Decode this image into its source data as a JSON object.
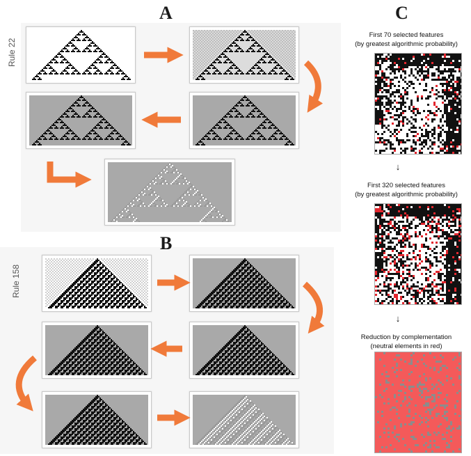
{
  "sections": {
    "A": {
      "letter": "A",
      "rule_label": "Rule 22"
    },
    "B": {
      "letter": "B",
      "rule_label": "Rule 158"
    },
    "C": {
      "letter": "C",
      "steps": [
        {
          "caption_line1": "First 70 selected features",
          "caption_line2": "(by greatest algorithmic probability)"
        },
        {
          "caption_line1": "First 320 selected features",
          "caption_line2": "(by greatest algorithmic probability)"
        },
        {
          "caption_line1": "Reduction by complementation",
          "caption_line2": "(neutral elements in red)"
        }
      ],
      "arrow_glyph": "↓"
    }
  },
  "colors": {
    "arrow": "#f07a3a",
    "cell_black": "#111111",
    "cell_gray": "#a9a9a9",
    "cell_light": "#dcdcdc",
    "neutral_red": "#f45a5a"
  }
}
